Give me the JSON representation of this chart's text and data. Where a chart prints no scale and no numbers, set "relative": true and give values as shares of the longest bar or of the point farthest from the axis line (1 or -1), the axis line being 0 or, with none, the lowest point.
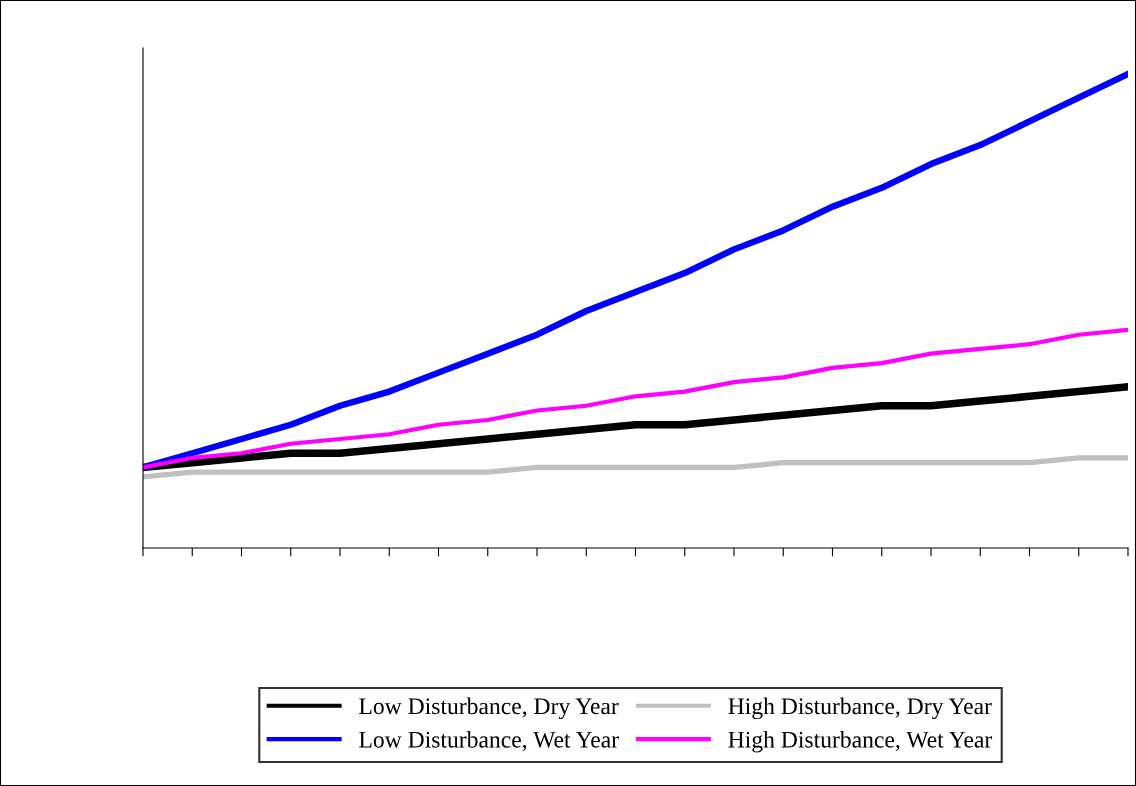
{
  "chart_data": {
    "type": "line",
    "relative": true,
    "legend": "bottom",
    "grid": false,
    "marker": "none",
    "line_style": "solid",
    "categories": [
      null,
      null,
      null,
      null,
      null,
      null,
      null,
      null,
      null,
      null,
      null,
      null,
      null,
      null,
      null,
      null,
      null,
      null,
      null,
      null,
      null
    ],
    "series": [
      {
        "name": "Low Disturbance, Dry Year",
        "color": "#000000",
        "values": [
          0.17,
          0.18,
          0.19,
          0.2,
          0.2,
          0.21,
          0.22,
          0.23,
          0.24,
          0.25,
          0.26,
          0.26,
          0.27,
          0.28,
          0.29,
          0.3,
          0.3,
          0.31,
          0.32,
          0.33,
          0.34
        ]
      },
      {
        "name": "Low Disturbance, Wet Year",
        "color": "#0000ff",
        "values": [
          0.17,
          0.2,
          0.23,
          0.26,
          0.3,
          0.33,
          0.37,
          0.41,
          0.45,
          0.5,
          0.54,
          0.58,
          0.63,
          0.67,
          0.72,
          0.76,
          0.81,
          0.85,
          0.9,
          0.95,
          1
        ]
      },
      {
        "name": "High Disturbance, Dry Year",
        "color": "#c0c0c0",
        "values": [
          0.15,
          0.16,
          0.16,
          0.16,
          0.16,
          0.16,
          0.16,
          0.16,
          0.17,
          0.17,
          0.17,
          0.17,
          0.17,
          0.18,
          0.18,
          0.18,
          0.18,
          0.18,
          0.18,
          0.19,
          0.19
        ]
      },
      {
        "name": "High Disturbance, Wet Year",
        "color": "#ff00ff",
        "values": [
          0.17,
          0.19,
          0.2,
          0.22,
          0.23,
          0.24,
          0.26,
          0.27,
          0.29,
          0.3,
          0.32,
          0.33,
          0.35,
          0.36,
          0.38,
          0.39,
          0.41,
          0.42,
          0.43,
          0.45,
          0.46
        ]
      }
    ]
  }
}
